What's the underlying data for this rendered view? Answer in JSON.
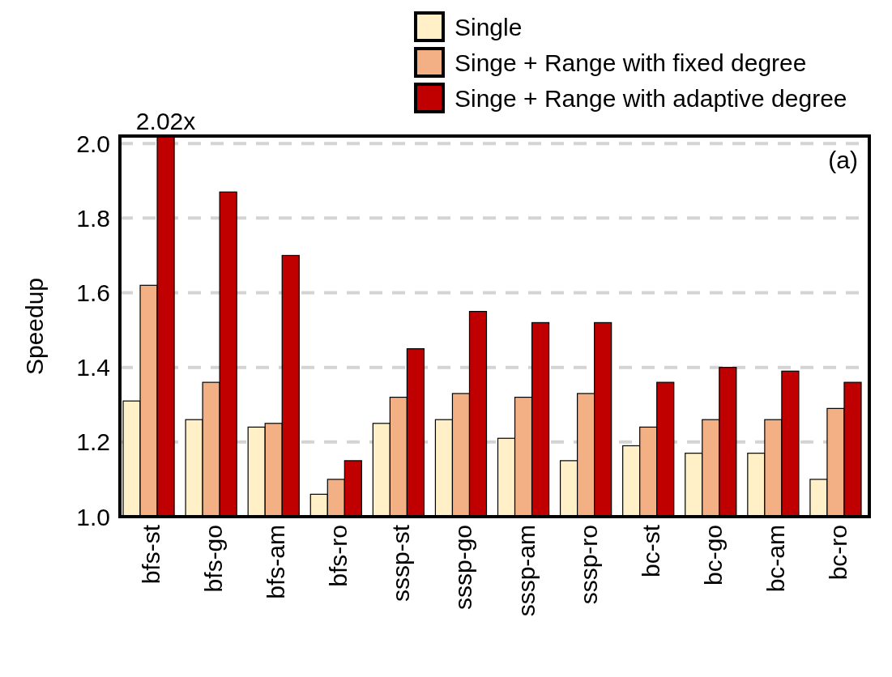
{
  "chart_data": {
    "type": "bar",
    "ylabel": "Speedup",
    "categories": [
      "bfs-st",
      "bfs-go",
      "bfs-am",
      "bfs-ro",
      "sssp-st",
      "sssp-go",
      "sssp-am",
      "sssp-ro",
      "bc-st",
      "bc-go",
      "bc-am",
      "bc-ro"
    ],
    "series": [
      {
        "name": "Single",
        "color": "#fff0c8",
        "values": [
          1.31,
          1.26,
          1.24,
          1.06,
          1.25,
          1.26,
          1.21,
          1.15,
          1.19,
          1.17,
          1.17,
          1.1
        ]
      },
      {
        "name": "Singe + Range with fixed degree",
        "color": "#f2b084",
        "values": [
          1.62,
          1.36,
          1.25,
          1.1,
          1.32,
          1.33,
          1.32,
          1.33,
          1.24,
          1.26,
          1.26,
          1.29
        ]
      },
      {
        "name": "Singe + Range with adaptive degree",
        "color": "#c00000",
        "values": [
          2.02,
          1.87,
          1.7,
          1.15,
          1.45,
          1.55,
          1.52,
          1.52,
          1.36,
          1.4,
          1.39,
          1.36
        ],
        "value_labels": [
          "2.02x",
          null,
          null,
          null,
          null,
          null,
          null,
          null,
          null,
          null,
          null,
          null
        ]
      }
    ],
    "ylim": [
      1.0,
      2.02
    ],
    "yticks": [
      {
        "value": 1,
        "label": "1.0"
      },
      1.2,
      1.4,
      1.6,
      1.8,
      {
        "value": 2,
        "label": "2.0"
      }
    ],
    "grid": "y",
    "legend": "top right",
    "annotations": [
      "(a)"
    ]
  }
}
